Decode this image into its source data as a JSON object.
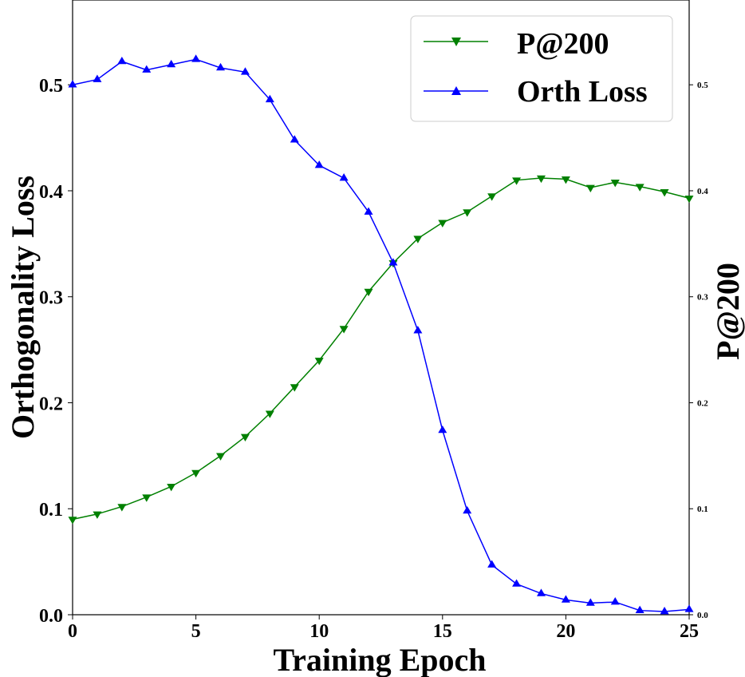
{
  "chart_data": {
    "type": "line",
    "xlabel": "Training Epoch",
    "ylabel_left": "Orthogonality Loss",
    "ylabel_right": "P@200",
    "xlim": [
      0,
      25
    ],
    "ylim_left": [
      0,
      0.58
    ],
    "ylim_right": [
      0,
      0.58
    ],
    "xticks": [
      0,
      5,
      10,
      15,
      20,
      25
    ],
    "xtick_labels": [
      "0",
      "5",
      "10",
      "15",
      "20",
      "25"
    ],
    "yticks_left": [
      0.0,
      0.1,
      0.2,
      0.3,
      0.4,
      0.5
    ],
    "ytick_labels_left": [
      "0.0",
      "0.1",
      "0.2",
      "0.3",
      "0.4",
      "0.5"
    ],
    "yticks_right": [
      0.0,
      0.1,
      0.2,
      0.3,
      0.4,
      0.5
    ],
    "ytick_labels_right": [
      "0.0",
      "0.1",
      "0.2",
      "0.3",
      "0.4",
      "0.5"
    ],
    "legend_position": "top-right",
    "grid": false,
    "x": [
      0,
      1,
      2,
      3,
      4,
      5,
      6,
      7,
      8,
      9,
      10,
      11,
      12,
      13,
      14,
      15,
      16,
      17,
      18,
      19,
      20,
      21,
      22,
      23,
      24,
      25
    ],
    "series": [
      {
        "name": "P@200",
        "color": "#008000",
        "marker": "triangle-down",
        "axis": "right",
        "values": [
          0.09,
          0.095,
          0.102,
          0.111,
          0.121,
          0.134,
          0.15,
          0.168,
          0.19,
          0.215,
          0.24,
          0.27,
          0.305,
          0.332,
          0.355,
          0.37,
          0.38,
          0.395,
          0.41,
          0.412,
          0.411,
          0.403,
          0.408,
          0.404,
          0.399,
          0.393
        ]
      },
      {
        "name": "Orth Loss",
        "color": "#0000ff",
        "marker": "triangle-up",
        "axis": "left",
        "values": [
          0.5,
          0.505,
          0.522,
          0.514,
          0.519,
          0.524,
          0.516,
          0.512,
          0.486,
          0.448,
          0.424,
          0.412,
          0.38,
          0.332,
          0.268,
          0.174,
          0.098,
          0.047,
          0.029,
          0.02,
          0.014,
          0.011,
          0.012,
          0.004,
          0.003,
          0.005
        ]
      }
    ]
  }
}
